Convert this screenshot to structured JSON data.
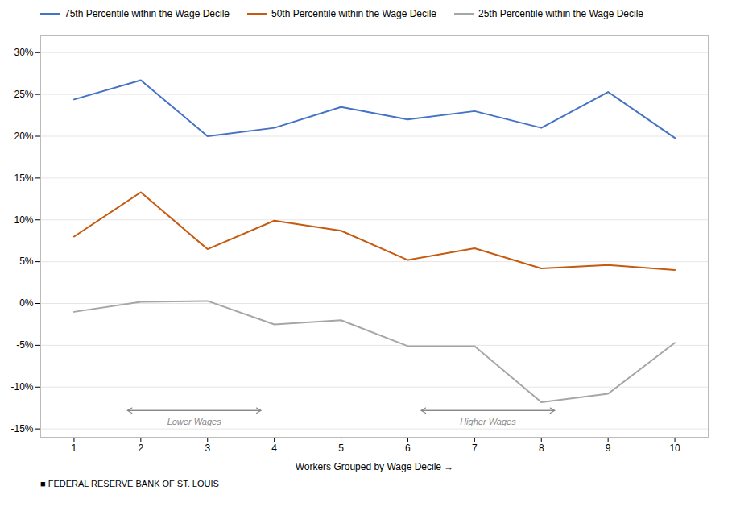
{
  "chart_data": {
    "type": "line",
    "x_label": "Workers Grouped by Wage Decile",
    "x": [
      1,
      2,
      3,
      4,
      5,
      6,
      7,
      8,
      9,
      10
    ],
    "xlim": [
      0.5,
      10.5
    ],
    "xticks": [
      1,
      2,
      3,
      4,
      5,
      6,
      7,
      8,
      9,
      10
    ],
    "ylim": [
      -0.16,
      0.32
    ],
    "yticks": [
      {
        "value": -0.15,
        "label": "-15%"
      },
      {
        "value": -0.1,
        "label": "-10%"
      },
      {
        "value": -0.05,
        "label": "-5%"
      },
      {
        "value": 0.0,
        "label": "0%"
      },
      {
        "value": 0.05,
        "label": "5%"
      },
      {
        "value": 0.1,
        "label": "10%"
      },
      {
        "value": 0.15,
        "label": "15%"
      },
      {
        "value": 0.2,
        "label": "20%"
      },
      {
        "value": 0.25,
        "label": "25%"
      },
      {
        "value": 0.3,
        "label": "30%"
      }
    ],
    "grid": true,
    "legend": "top",
    "series": [
      {
        "name": "75th Percentile within the Wage Decile",
        "color": "#4472C4",
        "values": [
          0.244,
          0.267,
          0.2,
          0.21,
          0.235,
          0.22,
          0.23,
          0.21,
          0.253,
          0.198
        ]
      },
      {
        "name": "50th Percentile within the Wage Decile",
        "color": "#C55A11",
        "values": [
          0.08,
          0.133,
          0.065,
          0.099,
          0.087,
          0.052,
          0.066,
          0.042,
          0.046,
          0.04
        ]
      },
      {
        "name": "25th Percentile within the Wage Decile",
        "color": "#A6A6A6",
        "values": [
          -0.01,
          0.002,
          0.003,
          -0.025,
          -0.02,
          -0.051,
          -0.051,
          -0.118,
          -0.108,
          -0.047
        ]
      }
    ],
    "annotations": [
      {
        "text": "Lower Wages",
        "x_start": 1.8,
        "x_end": 3.8,
        "y": -0.128,
        "label_y": -0.136
      },
      {
        "text": "Higher Wages",
        "x_start": 6.2,
        "x_end": 8.2,
        "y": -0.128,
        "label_y": -0.136
      }
    ],
    "caption": "■  FEDERAL RESERVE BANK OF ST. LOUIS"
  }
}
